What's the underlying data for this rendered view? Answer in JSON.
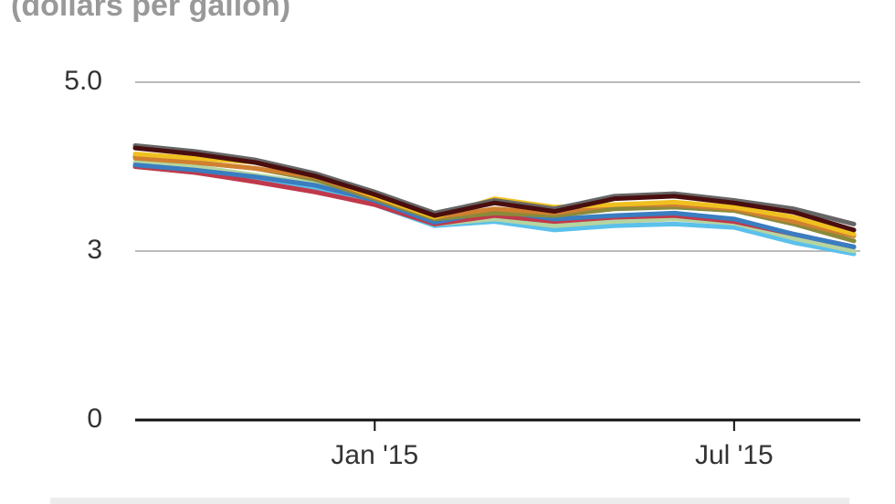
{
  "chart_data": {
    "type": "line",
    "subtitle": "(dollars per gallon)",
    "x": [
      "2014-09",
      "2014-10",
      "2014-11",
      "2014-12",
      "2015-01",
      "2015-02",
      "2015-03",
      "2015-04",
      "2015-05",
      "2015-06",
      "2015-07",
      "2015-08",
      "2015-09"
    ],
    "xlim": [
      "2014-09",
      "2015-09"
    ],
    "xticks": [
      {
        "value": "2015-01",
        "label": "Jan '15"
      },
      {
        "value": "2015-07",
        "label": "Jul '15"
      }
    ],
    "ylim": [
      0,
      5
    ],
    "yticks": [
      0,
      3,
      {
        "value": 5,
        "label": "5.0"
      }
    ],
    "grid": true,
    "series": [
      {
        "color": "#5bc0eb",
        "values": [
          4.0,
          3.95,
          3.85,
          3.75,
          3.55,
          3.3,
          3.35,
          3.25,
          3.3,
          3.32,
          3.28,
          3.1,
          2.95
        ]
      },
      {
        "color": "#b5d5a0",
        "values": [
          4.05,
          4.0,
          3.9,
          3.8,
          3.58,
          3.32,
          3.38,
          3.3,
          3.35,
          3.38,
          3.33,
          3.15,
          3.0
        ]
      },
      {
        "color": "#c0394b",
        "values": [
          4.0,
          3.93,
          3.82,
          3.7,
          3.55,
          3.32,
          3.42,
          3.35,
          3.4,
          3.42,
          3.35,
          3.2,
          3.05
        ]
      },
      {
        "color": "#3a7dc0",
        "values": [
          4.02,
          3.96,
          3.88,
          3.78,
          3.6,
          3.34,
          3.48,
          3.38,
          3.42,
          3.45,
          3.38,
          3.2,
          3.05
        ]
      },
      {
        "color": "#8a8a3a",
        "values": [
          4.12,
          4.05,
          3.98,
          3.85,
          3.62,
          3.38,
          3.45,
          3.42,
          3.5,
          3.52,
          3.48,
          3.32,
          3.12
        ]
      },
      {
        "color": "#d08030",
        "values": [
          4.1,
          4.05,
          3.98,
          3.88,
          3.64,
          3.4,
          3.5,
          3.45,
          3.55,
          3.55,
          3.5,
          3.35,
          3.18
        ]
      },
      {
        "color": "#f0c020",
        "values": [
          4.15,
          4.1,
          4.05,
          3.9,
          3.65,
          3.4,
          3.62,
          3.52,
          3.55,
          3.58,
          3.52,
          3.4,
          3.2
        ]
      },
      {
        "color": "#666666",
        "values": [
          4.25,
          4.18,
          4.08,
          3.92,
          3.7,
          3.45,
          3.6,
          3.5,
          3.65,
          3.68,
          3.6,
          3.5,
          3.32
        ]
      },
      {
        "color": "#4a0e0e",
        "values": [
          4.22,
          4.15,
          4.05,
          3.89,
          3.67,
          3.42,
          3.57,
          3.47,
          3.62,
          3.65,
          3.57,
          3.46,
          3.25
        ]
      }
    ]
  }
}
